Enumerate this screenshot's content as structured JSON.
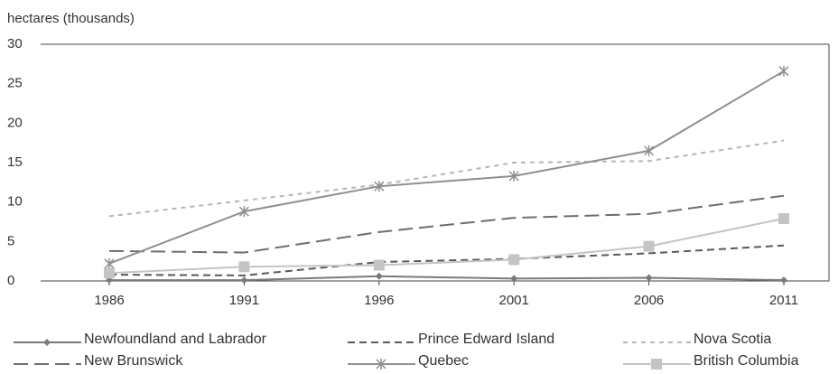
{
  "chart_data": {
    "type": "line",
    "title": "hectares (thousands)",
    "categories": [
      "1986",
      "1991",
      "1996",
      "2001",
      "2006",
      "2011"
    ],
    "ylim": [
      0,
      30
    ],
    "yticks": [
      0,
      5,
      10,
      15,
      20,
      25,
      30
    ],
    "series": [
      {
        "name": "Newfoundland and Labrador",
        "color": "#7a7a7a",
        "style": "solid",
        "marker": "diamond",
        "values": [
          0.1,
          0.1,
          0.6,
          0.3,
          0.4,
          0.1
        ]
      },
      {
        "name": "Prince Edward Island",
        "color": "#5a5a5a",
        "style": "dashed",
        "marker": "none",
        "values": [
          0.8,
          0.7,
          2.4,
          2.8,
          3.5,
          4.5
        ]
      },
      {
        "name": "Nova Scotia",
        "color": "#b5b5b5",
        "style": "dotted",
        "marker": "none",
        "values": [
          8.2,
          10.2,
          12.2,
          15,
          15.2,
          17.8
        ]
      },
      {
        "name": "New Brunswick",
        "color": "#6e6e6e",
        "style": "long-dashed",
        "marker": "none",
        "values": [
          3.8,
          3.6,
          6.2,
          8,
          8.5,
          10.8
        ]
      },
      {
        "name": "Quebec",
        "color": "#8f8f8f",
        "style": "solid",
        "marker": "x",
        "values": [
          2.2,
          8.8,
          12,
          13.3,
          16.5,
          26.6
        ]
      },
      {
        "name": "British Columbia",
        "color": "#c4c4c4",
        "style": "solid",
        "marker": "square",
        "values": [
          1,
          1.8,
          2,
          2.7,
          4.4,
          7.9
        ]
      }
    ]
  }
}
